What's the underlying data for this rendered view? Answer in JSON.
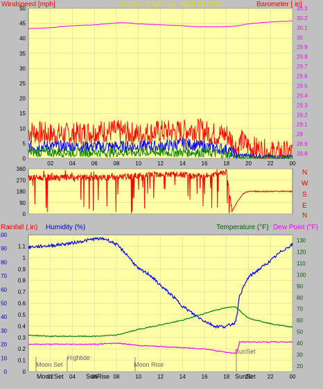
{
  "header": {
    "left_label": "Windspeed [mph]",
    "center_label": "24 hour graph day - April 28 2020",
    "right_label": "Barometer [ in]"
  },
  "bottom_header": {
    "rainfall_label": "Rainfall (.in)",
    "humidity_label": "Humidity (%)",
    "temperature_label": "Temperature (°F)",
    "dewpoint_label": "Dew Point (°F)"
  },
  "compass": [
    "N",
    "W",
    "S",
    "E",
    "N"
  ],
  "events_top": {
    "hightide": "Hightide",
    "moon_set": "Moon Set",
    "moon_rise": "Moon Rise",
    "sun_set": "SunSet"
  },
  "events_axis": {
    "moon_set": "Moon Set",
    "sun_rise": "SunRise",
    "sun_set": "SunSet"
  },
  "colors": {
    "plot_bg": "#ffffa8",
    "frame_bg": "#c0c0c0",
    "grid": "#d0d0a0",
    "wind_gust": "#ff0000",
    "wind_avg": "#0000ff",
    "wind_low": "#008000",
    "barometer": "#ff00ff",
    "direction": "#ff0000",
    "humidity": "#0000ff",
    "temperature": "#008000",
    "dewpoint": "#ff00ff",
    "title_yellow": "#ffff00",
    "axis_label_red": "#ff0000",
    "axis_label_blue": "#0000cc",
    "axis_label_green": "#006000"
  },
  "chart_data": [
    {
      "type": "line",
      "name_panel": "wind-barometer",
      "x_ticks": [
        "02",
        "04",
        "06",
        "08",
        "10",
        "12",
        "14",
        "16",
        "18",
        "20",
        "22",
        "00"
      ],
      "y_left_ticks": [
        "0",
        "5",
        "10",
        "15",
        "20",
        "25",
        "30",
        "35",
        "40",
        "45",
        "50"
      ],
      "y_left_range": [
        0,
        50
      ],
      "y_right_ticks": [
        "28.8",
        "28.9",
        "29",
        "29.1",
        "29.2",
        "29.3",
        "29.4",
        "29.5",
        "29.6",
        "29.7",
        "29.8",
        "29.9",
        "30",
        "30.1",
        "30.2",
        "30.3"
      ],
      "y_right_range": [
        28.75,
        30.3
      ],
      "barometer": {
        "x": [
          0,
          2,
          4,
          6,
          8,
          9,
          10,
          12,
          14,
          15,
          16,
          18,
          19,
          20,
          22,
          24
        ],
        "y": [
          30.09,
          30.1,
          30.12,
          30.13,
          30.15,
          30.15,
          30.14,
          30.13,
          30.12,
          30.11,
          30.11,
          30.11,
          30.12,
          30.14,
          30.16,
          30.17
        ]
      },
      "wind_gust_envelope": {
        "x": [
          0,
          2,
          4,
          6,
          8,
          10,
          12,
          14,
          15,
          16,
          17,
          18,
          18.5,
          19,
          19.3,
          20,
          21,
          22,
          23,
          24
        ],
        "y": [
          9,
          8,
          8,
          9,
          9,
          8,
          9,
          9,
          10,
          9,
          8,
          8,
          6,
          3,
          6,
          4,
          3,
          2,
          2,
          2
        ]
      },
      "wind_avg_envelope": {
        "x": [
          0,
          2,
          4,
          6,
          8,
          10,
          12,
          14,
          16,
          18,
          19,
          20,
          22,
          24
        ],
        "y": [
          4,
          4,
          4,
          4,
          4,
          4,
          4,
          5,
          4,
          3,
          1,
          1,
          0.5,
          0.5
        ]
      },
      "wind_low_envelope": {
        "x": [
          0,
          2,
          4,
          6,
          8,
          10,
          12,
          14,
          16,
          18,
          19,
          20,
          22,
          24
        ],
        "y": [
          2,
          2,
          2,
          2,
          2,
          2,
          2,
          2,
          2,
          1.5,
          0.5,
          0.3,
          0.2,
          0.2
        ]
      }
    },
    {
      "type": "line",
      "name_panel": "wind-direction",
      "y_ticks": [
        "0",
        "90",
        "180",
        "270",
        "360"
      ],
      "y_range": [
        0,
        360
      ],
      "direction": {
        "x": [
          0,
          4,
          8,
          12,
          16,
          18,
          18.5,
          19,
          19.5,
          20,
          22,
          24
        ],
        "y": [
          290,
          290,
          290,
          320,
          300,
          340,
          20,
          100,
          160,
          180,
          180,
          180
        ]
      }
    },
    {
      "type": "line",
      "name_panel": "humidity-temperature",
      "x_ticks": [
        "02",
        "04",
        "06",
        "08",
        "10",
        "12",
        "14",
        "16",
        "18",
        "20",
        "22",
        "00"
      ],
      "y_rain_ticks": [
        "0",
        "10",
        "20",
        "30",
        "40",
        "50",
        "60",
        "70",
        "80",
        "90",
        "100"
      ],
      "y_rain_range": [
        0,
        100
      ],
      "y_humidity_ticks": [
        "0",
        "0.1",
        "0.2",
        "0.3",
        "0.4",
        "0.5",
        "0.6",
        "0.7",
        "0.8",
        "0.9",
        "1",
        "1.1"
      ],
      "y_humidity_range": [
        0,
        1.2
      ],
      "y_temp_ticks": [
        "20",
        "30",
        "40",
        "50",
        "60",
        "70",
        "80",
        "90",
        "100",
        "110",
        "120",
        "130"
      ],
      "y_temp_range": [
        15,
        135
      ],
      "humidity": {
        "x": [
          0,
          2,
          4,
          6,
          7,
          8,
          9,
          10,
          11,
          12,
          13,
          14,
          15,
          16,
          17,
          18,
          18.8,
          19,
          19.2,
          20,
          21,
          22,
          23,
          24
        ],
        "y": [
          91,
          92,
          94,
          97,
          97,
          93,
          85,
          75,
          71,
          63,
          56,
          48,
          42,
          37,
          33,
          33,
          36,
          44,
          56,
          69,
          75,
          81,
          88,
          93
        ]
      },
      "temperature": {
        "x": [
          0,
          2,
          4,
          6,
          8,
          10,
          12,
          14,
          16,
          17,
          18,
          18.8,
          19.5,
          20,
          22,
          24
        ],
        "y": [
          47,
          46,
          46,
          46,
          47,
          52,
          56,
          60,
          66,
          69,
          71,
          72,
          66,
          62,
          57,
          54
        ]
      },
      "dewpoint": {
        "x": [
          0,
          2,
          4,
          6,
          8,
          10,
          12,
          14,
          16,
          18,
          18.8,
          19,
          19.2,
          20,
          22,
          24
        ],
        "y": [
          39,
          39,
          39,
          39,
          40,
          38,
          37,
          36,
          35,
          32,
          31,
          34,
          41,
          41,
          41,
          41
        ]
      }
    }
  ]
}
